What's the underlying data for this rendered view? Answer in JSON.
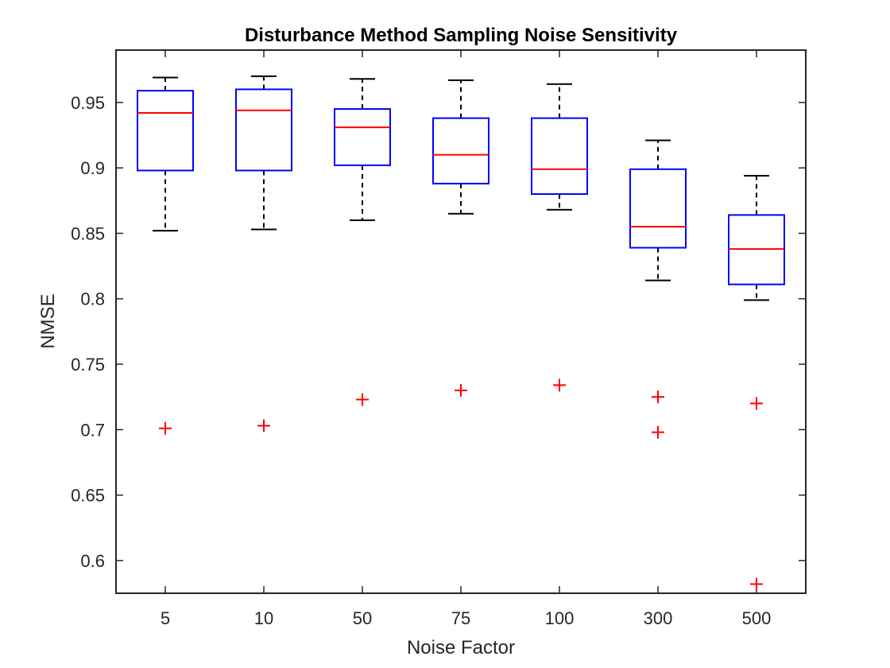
{
  "chart_data": {
    "type": "boxplot",
    "title": "Disturbance Method Sampling Noise Sensitivity",
    "xlabel": "Noise Factor",
    "ylabel": "NMSE",
    "ylim": [
      0.575,
      0.99
    ],
    "yticks": [
      0.6,
      0.65,
      0.7,
      0.75,
      0.8,
      0.85,
      0.9,
      0.95
    ],
    "ytick_labels": [
      "0.6",
      "0.65",
      "0.7",
      "0.75",
      "0.8",
      "0.85",
      "0.9",
      "0.95"
    ],
    "categories": [
      "5",
      "10",
      "50",
      "75",
      "100",
      "300",
      "500"
    ],
    "grid": false,
    "colors": {
      "box": "#0000ff",
      "median": "#ff0000",
      "whisker": "#000000",
      "outlier": "#ff0000",
      "axis": "#262626"
    },
    "boxes": [
      {
        "category": "5",
        "whisker_low": 0.852,
        "q1": 0.898,
        "median": 0.942,
        "q3": 0.959,
        "whisker_high": 0.969,
        "outliers": [
          0.701
        ]
      },
      {
        "category": "10",
        "whisker_low": 0.853,
        "q1": 0.898,
        "median": 0.944,
        "q3": 0.96,
        "whisker_high": 0.97,
        "outliers": [
          0.703
        ]
      },
      {
        "category": "50",
        "whisker_low": 0.86,
        "q1": 0.902,
        "median": 0.931,
        "q3": 0.945,
        "whisker_high": 0.968,
        "outliers": [
          0.723
        ]
      },
      {
        "category": "75",
        "whisker_low": 0.865,
        "q1": 0.888,
        "median": 0.91,
        "q3": 0.938,
        "whisker_high": 0.967,
        "outliers": [
          0.73
        ]
      },
      {
        "category": "100",
        "whisker_low": 0.868,
        "q1": 0.88,
        "median": 0.899,
        "q3": 0.938,
        "whisker_high": 0.964,
        "outliers": [
          0.734
        ]
      },
      {
        "category": "300",
        "whisker_low": 0.814,
        "q1": 0.839,
        "median": 0.855,
        "q3": 0.899,
        "whisker_high": 0.921,
        "outliers": [
          0.725,
          0.698
        ]
      },
      {
        "category": "500",
        "whisker_low": 0.799,
        "q1": 0.811,
        "median": 0.838,
        "q3": 0.864,
        "whisker_high": 0.894,
        "outliers": [
          0.72,
          0.582
        ]
      }
    ]
  }
}
